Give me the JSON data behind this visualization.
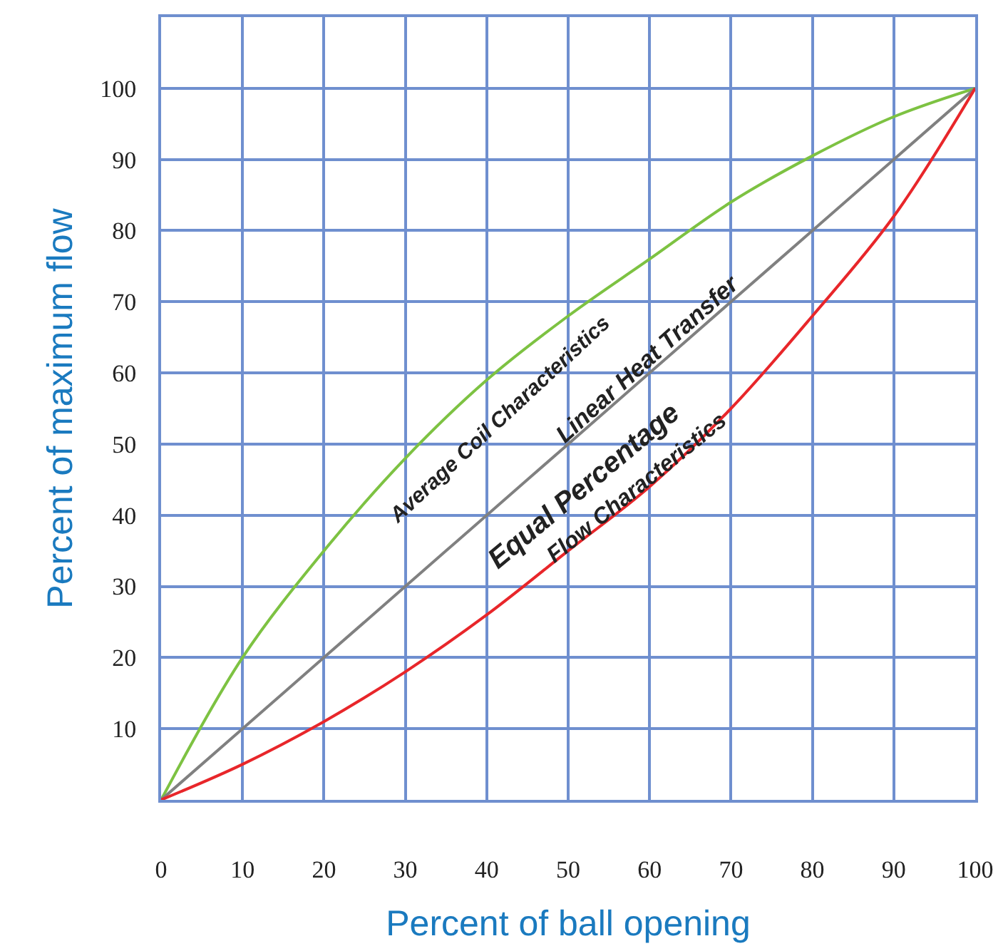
{
  "chart_data": {
    "type": "line",
    "xlabel": "Percent of ball opening",
    "ylabel": "Percent of maximum flow",
    "x": [
      0,
      10,
      20,
      30,
      40,
      50,
      60,
      70,
      80,
      90,
      100
    ],
    "series": [
      {
        "color": "#7dc242",
        "values": [
          0,
          20,
          35,
          48,
          59,
          68,
          76,
          84,
          90.5,
          96,
          100
        ]
      },
      {
        "color": "#808080",
        "values": [
          0,
          10,
          20,
          30,
          40,
          50,
          60,
          70,
          80,
          90,
          100
        ]
      },
      {
        "color": "#e8262a",
        "values": [
          0,
          5,
          11,
          18,
          26,
          35,
          44,
          55,
          68,
          82,
          100
        ]
      }
    ],
    "xlim": [
      0,
      100
    ],
    "ylim": [
      0,
      110
    ],
    "xticks": [
      0,
      10,
      20,
      30,
      40,
      50,
      60,
      70,
      80,
      90,
      100
    ],
    "yticks": [
      10,
      20,
      30,
      40,
      50,
      60,
      70,
      80,
      90,
      100
    ],
    "grid": true,
    "marker": "none",
    "line_style": "solid",
    "annotations": [
      "Average Coil Characteristics",
      "Linear Heat Transfer",
      "Equal Percentage",
      "Flow Characteristics"
    ]
  }
}
